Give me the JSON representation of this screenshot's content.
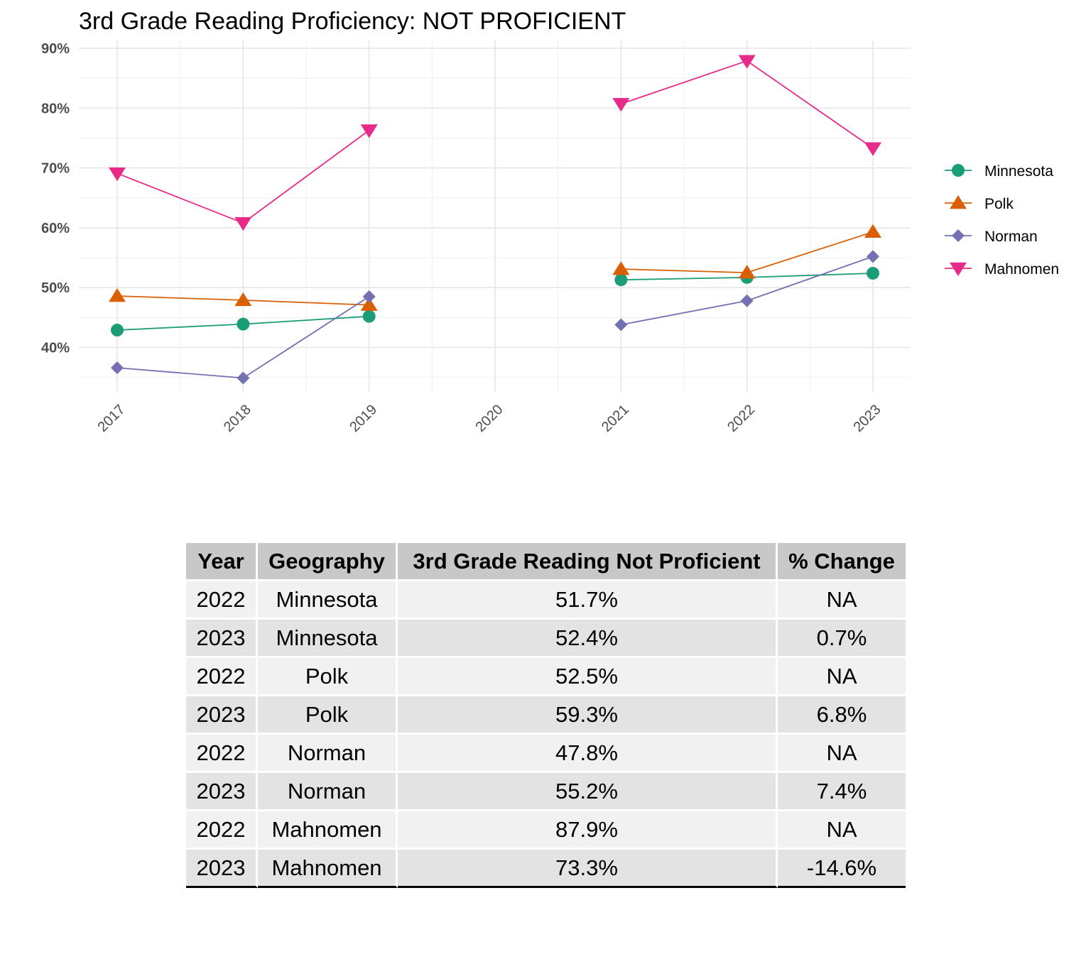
{
  "chart_data": {
    "type": "line",
    "title": "3rd Grade Reading Proficiency: NOT PROFICIENT",
    "xlabel": "",
    "ylabel": "",
    "x": [
      "2017",
      "2018",
      "2019",
      "2020",
      "2021",
      "2022",
      "2023"
    ],
    "ylim": [
      33,
      90
    ],
    "yticks": [
      40,
      50,
      60,
      70,
      80,
      90
    ],
    "ytick_labels": [
      "40%",
      "50%",
      "60%",
      "70%",
      "80%",
      "90%"
    ],
    "grid": true,
    "legend_position": "right",
    "series": [
      {
        "name": "Minnesota",
        "color": "#1b9e77",
        "marker": "circle",
        "values": [
          42.9,
          43.9,
          45.2,
          null,
          51.3,
          51.7,
          52.4
        ]
      },
      {
        "name": "Polk",
        "color": "#d95f02",
        "marker": "triangle-up",
        "values": [
          48.6,
          47.9,
          47.1,
          null,
          53.1,
          52.5,
          59.3
        ]
      },
      {
        "name": "Norman",
        "color": "#7570b3",
        "marker": "diamond",
        "values": [
          36.6,
          34.9,
          48.5,
          null,
          43.8,
          47.8,
          55.2
        ]
      },
      {
        "name": "Mahnomen",
        "color": "#e7298a",
        "marker": "triangle-down",
        "values": [
          69.1,
          60.8,
          76.3,
          null,
          80.7,
          87.9,
          73.3
        ]
      }
    ]
  },
  "table": {
    "headers": [
      "Year",
      "Geography",
      "3rd Grade Reading Not Proficient",
      "% Change"
    ],
    "rows": [
      [
        "2022",
        "Minnesota",
        "51.7%",
        "NA"
      ],
      [
        "2023",
        "Minnesota",
        "52.4%",
        "0.7%"
      ],
      [
        "2022",
        "Polk",
        "52.5%",
        "NA"
      ],
      [
        "2023",
        "Polk",
        "59.3%",
        "6.8%"
      ],
      [
        "2022",
        "Norman",
        "47.8%",
        "NA"
      ],
      [
        "2023",
        "Norman",
        "55.2%",
        "7.4%"
      ],
      [
        "2022",
        "Mahnomen",
        "87.9%",
        "NA"
      ],
      [
        "2023",
        "Mahnomen",
        "73.3%",
        "-14.6%"
      ]
    ]
  }
}
